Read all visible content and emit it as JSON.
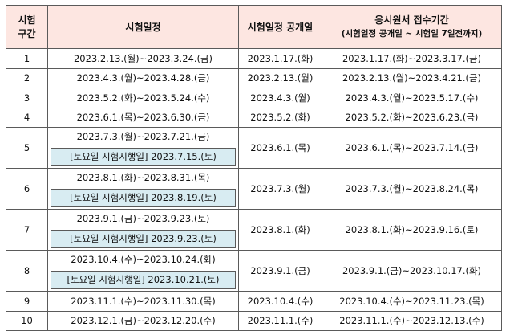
{
  "headers": {
    "period": [
      "시험",
      "구간"
    ],
    "schedule": "시험일정",
    "announce": "시험일정 공개일",
    "application": [
      "응시원서 접수기간",
      "(시험일정 공개일 ~ 시험일 7일전까지)"
    ]
  },
  "rows": [
    {
      "no": "1",
      "schedule": "2023.2.13.(월)~2023.3.24.(금)",
      "announce": "2023.1.17.(화)",
      "apply": "2023.1.17.(화)~2023.3.17.(금)"
    },
    {
      "no": "2",
      "schedule": "2023.4.3.(월)~2023.4.28.(금)",
      "announce": "2023.2.13.(월)",
      "apply": "2023.2.13.(월)~2023.4.21.(금)"
    },
    {
      "no": "3",
      "schedule": "2023.5.2.(화)~2023.5.24.(수)",
      "announce": "2023.4.3.(월)",
      "apply": "2023.4.3.(월)~2023.5.17.(수)"
    },
    {
      "no": "4",
      "schedule": "2023.6.1.(목)~2023.6.30.(금)",
      "announce": "2023.5.2.(화)",
      "apply": "2023.5.2.(화)~2023.6.23.(금)"
    },
    {
      "no": "5",
      "schedule": "2023.7.3.(월)~2023.7.21.(금)",
      "saturday": "[토요일 시험시행일] 2023.7.15.(토)",
      "announce": "2023.6.1.(목)",
      "apply": "2023.6.1.(목)~2023.7.14.(금)"
    },
    {
      "no": "6",
      "schedule": "2023.8.1.(화)~2023.8.31.(목)",
      "saturday": "[토요일 시험시행일] 2023.8.19.(토)",
      "announce": "2023.7.3.(월)",
      "apply": "2023.7.3.(월)~2023.8.24.(목)"
    },
    {
      "no": "7",
      "schedule": "2023.9.1.(금)~2023.9.23.(토)",
      "saturday": "[토요일 시험시행일] 2023.9.23.(토)",
      "announce": "2023.8.1.(화)",
      "apply": "2023.8.1.(화)~2023.9.16.(토)"
    },
    {
      "no": "8",
      "schedule": "2023.10.4.(수)~2023.10.24.(화)",
      "saturday": "[토요일 시험시행일] 2023.10.21.(토)",
      "announce": "2023.9.1.(금)",
      "apply": "2023.9.1.(금)~2023.10.17.(화)"
    },
    {
      "no": "9",
      "schedule": "2023.11.1.(수)~2023.11.30.(목)",
      "announce": "2023.10.4.(수)",
      "apply": "2023.10.4.(수)~2023.11.23.(목)"
    },
    {
      "no": "10",
      "schedule": "2023.12.1.(금)~2023.12.20.(수)",
      "announce": "2023.11.1.(수)",
      "apply": "2023.11.1.(수)~2023.12.13.(수)"
    }
  ],
  "colors": {
    "header_bg": "#fde6e1",
    "saturday_bg": "#d8ecf2",
    "border": "#5a5a5a"
  }
}
